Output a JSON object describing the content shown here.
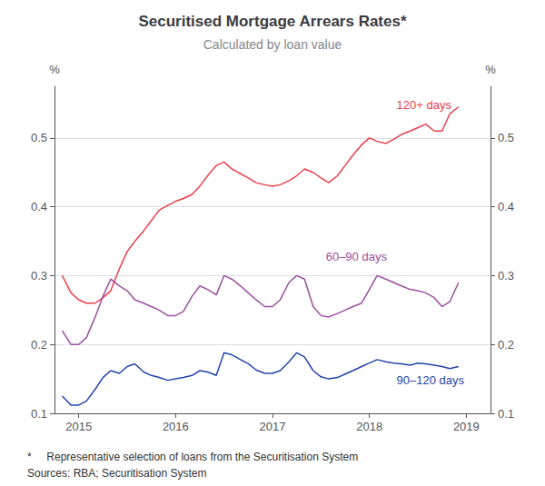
{
  "chart_data": {
    "type": "line",
    "title": "Securitised Mortgage Arrears Rates*",
    "subtitle": "Calculated by loan value",
    "notes": [
      "*     Representative selection of loans from the Securitisation System",
      "Sources: RBA; Securitisation System"
    ],
    "ylabel": "%",
    "y2label": "%",
    "xlim": [
      2014.75,
      2019.25
    ],
    "xticks": [
      2015,
      2016,
      2017,
      2018,
      2019
    ],
    "ylim": [
      0.1,
      0.575
    ],
    "yticks": [
      0.1,
      0.2,
      0.3,
      0.4,
      0.5
    ],
    "y2lim": [
      0.1,
      0.575
    ],
    "y2ticks": [
      0.1,
      0.2,
      0.3,
      0.4,
      0.5
    ],
    "grid": true,
    "x": [
      2014.83,
      2014.92,
      2015.0,
      2015.08,
      2015.17,
      2015.25,
      2015.33,
      2015.42,
      2015.5,
      2015.58,
      2015.67,
      2015.75,
      2015.83,
      2015.92,
      2016.0,
      2016.08,
      2016.17,
      2016.25,
      2016.33,
      2016.42,
      2016.5,
      2016.58,
      2016.67,
      2016.75,
      2016.83,
      2016.92,
      2017.0,
      2017.08,
      2017.17,
      2017.25,
      2017.33,
      2017.42,
      2017.5,
      2017.58,
      2017.67,
      2017.75,
      2017.83,
      2017.92,
      2018.0,
      2018.08,
      2018.17,
      2018.25,
      2018.33,
      2018.42,
      2018.5,
      2018.58,
      2018.67,
      2018.75,
      2018.83,
      2018.92
    ],
    "series": [
      {
        "name": "120+ days",
        "color": "#e8404a",
        "label_x": 2018.28,
        "label_y": 0.548,
        "values": [
          0.3,
          0.275,
          0.265,
          0.26,
          0.26,
          0.268,
          0.278,
          0.31,
          0.335,
          0.35,
          0.365,
          0.38,
          0.395,
          0.402,
          0.408,
          0.412,
          0.418,
          0.43,
          0.445,
          0.46,
          0.465,
          0.455,
          0.448,
          0.442,
          0.435,
          0.432,
          0.43,
          0.432,
          0.438,
          0.445,
          0.455,
          0.45,
          0.442,
          0.435,
          0.445,
          0.46,
          0.475,
          0.49,
          0.5,
          0.495,
          0.492,
          0.498,
          0.505,
          0.51,
          0.515,
          0.52,
          0.51,
          0.51,
          0.535,
          0.545
        ]
      },
      {
        "name": "60–90 days",
        "color": "#9b4fa0",
        "label_x": 2017.55,
        "label_y": 0.328,
        "values": [
          0.22,
          0.2,
          0.2,
          0.21,
          0.24,
          0.27,
          0.295,
          0.285,
          0.278,
          0.265,
          0.26,
          0.255,
          0.25,
          0.242,
          0.242,
          0.248,
          0.27,
          0.285,
          0.28,
          0.272,
          0.3,
          0.295,
          0.285,
          0.275,
          0.265,
          0.255,
          0.255,
          0.265,
          0.29,
          0.3,
          0.295,
          0.255,
          0.242,
          0.24,
          0.245,
          0.25,
          0.255,
          0.26,
          0.28,
          0.3,
          0.295,
          0.29,
          0.285,
          0.28,
          0.278,
          0.275,
          0.268,
          0.255,
          0.262,
          0.29
        ]
      },
      {
        "name": "90–120 days",
        "color": "#2244aa",
        "label_x": 2018.28,
        "label_y": 0.148,
        "values": [
          0.125,
          0.112,
          0.112,
          0.118,
          0.135,
          0.152,
          0.162,
          0.158,
          0.168,
          0.172,
          0.16,
          0.155,
          0.152,
          0.148,
          0.15,
          0.152,
          0.155,
          0.162,
          0.16,
          0.155,
          0.188,
          0.185,
          0.178,
          0.172,
          0.163,
          0.158,
          0.158,
          0.162,
          0.175,
          0.188,
          0.182,
          0.162,
          0.153,
          0.15,
          0.152,
          0.157,
          0.162,
          0.168,
          0.173,
          0.178,
          0.175,
          0.173,
          0.172,
          0.17,
          0.173,
          0.172,
          0.17,
          0.168,
          0.165,
          0.168
        ]
      }
    ]
  }
}
